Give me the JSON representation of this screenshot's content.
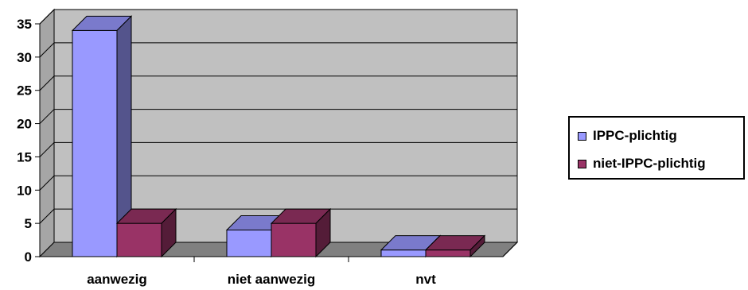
{
  "chart_data": {
    "type": "bar",
    "categories": [
      "aanwezig",
      "niet aanwezig",
      "nvt"
    ],
    "series": [
      {
        "name": "IPPC-plichtig",
        "values": [
          34,
          4,
          1
        ],
        "color": "#9999ff"
      },
      {
        "name": "niet-IPPC-plichtig",
        "values": [
          5,
          5,
          1
        ],
        "color": "#993366"
      }
    ],
    "ylim": [
      0,
      35
    ],
    "yticks": [
      "0",
      "5",
      "10",
      "15",
      "20",
      "25",
      "30",
      "35"
    ],
    "grid": true,
    "legend_position": "right",
    "plot_background": "#c0c0c0"
  }
}
